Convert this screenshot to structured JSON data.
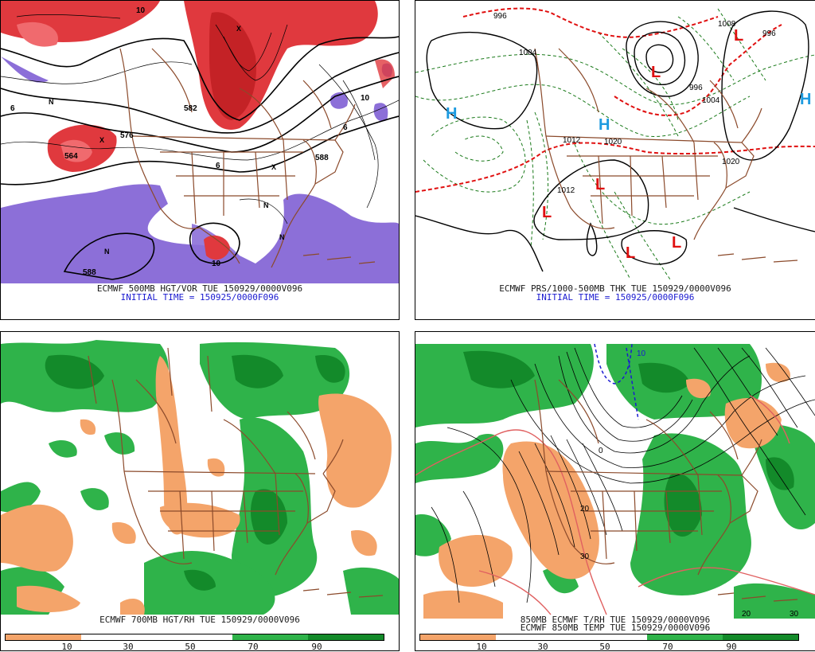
{
  "panels": {
    "top_left": {
      "caption_line1": "ECMWF 500MB HGT/VOR TUE 150929/0000V096",
      "caption_line2": "INITIAL TIME = 150925/0000F096",
      "contour_labels": [
        "576",
        "564",
        "582",
        "588",
        "588",
        "10",
        "6",
        "6",
        "6",
        "10",
        "N",
        "N",
        "N",
        "X",
        "X",
        "N",
        "X",
        "10"
      ]
    },
    "top_right": {
      "caption_line1": "ECMWF PRS/1000-500MB THK TUE 150929/0000V096",
      "caption_line2": "INITIAL TIME = 150925/0000F096",
      "pressure_centers": [
        {
          "type": "H",
          "color": "#1e9be0"
        },
        {
          "type": "H",
          "color": "#1e9be0"
        },
        {
          "type": "H",
          "color": "#1e9be0"
        },
        {
          "type": "L",
          "color": "#e01010"
        },
        {
          "type": "L",
          "color": "#e01010"
        },
        {
          "type": "L",
          "color": "#e01010"
        },
        {
          "type": "L",
          "color": "#e01010"
        },
        {
          "type": "L",
          "color": "#e01010"
        },
        {
          "type": "L",
          "color": "#e01010"
        }
      ],
      "isobar_labels": [
        "996",
        "1004",
        "1020",
        "1012",
        "1020",
        "1012",
        "996",
        "1004",
        "996",
        "1008"
      ]
    },
    "bottom_left": {
      "caption_line1": "ECMWF 700MB HGT/RH TUE 150929/0000V096",
      "colorbar": {
        "segments": [
          "#f4a46a",
          "#ffffff",
          "#ffffff",
          "#2fb34a",
          "#138a2a"
        ],
        "ticks": [
          "10",
          "30",
          "50",
          "70",
          "90"
        ]
      }
    },
    "bottom_right": {
      "caption_line1": "850MB ECMWF T/RH TUE 150929/0000V096",
      "caption_line2": "ECMWF 850MB TEMP TUE 150929/0000V096",
      "contour_labels": [
        "0",
        "10",
        "20",
        "30",
        "20",
        "30"
      ],
      "colorbar": {
        "segments": [
          "#f4a46a",
          "#ffffff",
          "#ffffff",
          "#2fb34a",
          "#138a2a"
        ],
        "ticks": [
          "10",
          "30",
          "50",
          "70",
          "90"
        ]
      }
    }
  },
  "colors": {
    "vorticity_high": "#e0393e",
    "vorticity_low": "#8c6fd8",
    "rh_dry": "#f4a46a",
    "rh_moist": "#2fb34a",
    "rh_very_moist": "#138a2a",
    "borders": "#8b4a2b",
    "thickness_cold": "#1a7a1a",
    "thickness_warm": "#e01010"
  }
}
